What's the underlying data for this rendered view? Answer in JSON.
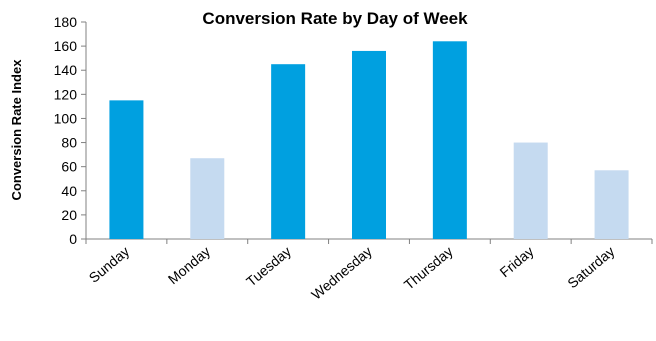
{
  "chart_data": {
    "type": "bar",
    "title": "Conversion Rate by Day of Week",
    "xlabel": "",
    "ylabel": "Conversion Rate Index",
    "ylim": [
      0,
      180
    ],
    "yticks": [
      0,
      20,
      40,
      60,
      80,
      100,
      120,
      140,
      160,
      180
    ],
    "categories": [
      "Sunday",
      "Monday",
      "Tuesday",
      "Wednesday",
      "Thursday",
      "Friday",
      "Saturday"
    ],
    "values": [
      115,
      67,
      145,
      156,
      164,
      80,
      57
    ],
    "colors": [
      "#00a0e0",
      "#c5daf0",
      "#00a0e0",
      "#00a0e0",
      "#00a0e0",
      "#c5daf0",
      "#c5daf0"
    ],
    "grid": false,
    "legend": "none"
  }
}
